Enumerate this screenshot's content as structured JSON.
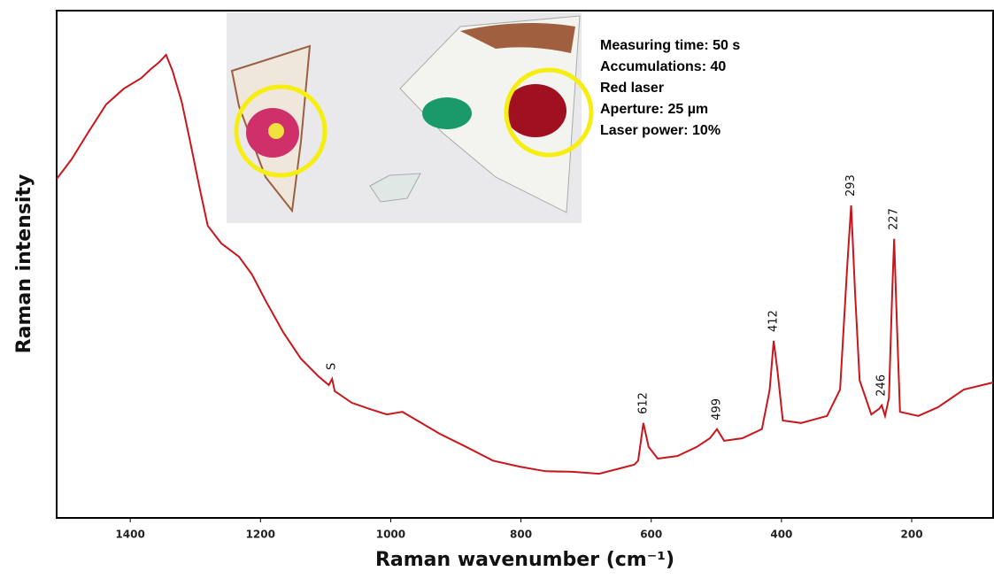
{
  "chart_data": {
    "type": "line",
    "x_label": "Raman wavenumber (cm⁻¹)",
    "y_label": "Raman intensity",
    "xlim": [
      1513,
      75
    ],
    "xticks": [
      1400,
      1200,
      1000,
      800,
      600,
      400,
      200
    ],
    "ylim": [
      0,
      100
    ],
    "series": [
      {
        "color": "#c8161d",
        "x": [
          1513,
          1490,
          1465,
          1437,
          1410,
          1383,
          1369,
          1355,
          1345,
          1335,
          1321,
          1308,
          1294,
          1281,
          1260,
          1233,
          1213,
          1192,
          1165,
          1138,
          1111,
          1095,
          1090,
          1086,
          1060,
          1033,
          1006,
          982,
          966,
          925,
          884,
          843,
          802,
          762,
          721,
          680,
          653,
          626,
          620,
          612,
          604,
          590,
          560,
          530,
          510,
          499,
          488,
          460,
          430,
          418,
          412,
          406,
          398,
          370,
          330,
          310,
          299,
          293,
          287,
          280,
          262,
          250,
          246,
          241,
          235,
          230,
          227,
          223,
          218,
          190,
          160,
          120,
          75
        ],
        "values": [
          66.8,
          70.7,
          75.9,
          81.5,
          84.6,
          86.7,
          88.4,
          89.9,
          91.3,
          88.1,
          82.0,
          74.2,
          65.4,
          57.6,
          54.1,
          51.5,
          48.0,
          42.8,
          36.6,
          31.4,
          27.9,
          26.2,
          27.4,
          25.0,
          22.7,
          21.5,
          20.4,
          20.9,
          19.7,
          16.6,
          14.0,
          11.3,
          10.1,
          9.2,
          9.1,
          8.7,
          9.6,
          10.5,
          11.3,
          18.7,
          14.0,
          11.7,
          12.2,
          14.0,
          15.7,
          17.5,
          15.2,
          15.7,
          17.5,
          25.3,
          34.9,
          28.8,
          19.2,
          18.7,
          20.1,
          25.3,
          49.7,
          61.6,
          44.5,
          27.1,
          20.4,
          21.5,
          22.2,
          20.1,
          23.6,
          44.5,
          55.0,
          39.3,
          20.9,
          20.1,
          21.8,
          25.3,
          26.7
        ]
      }
    ],
    "annotations": [
      {
        "text": "S",
        "x": 1090
      },
      {
        "text": "612",
        "x": 612
      },
      {
        "text": "499",
        "x": 499
      },
      {
        "text": "412",
        "x": 412
      },
      {
        "text": "293",
        "x": 293
      },
      {
        "text": "246",
        "x": 246
      },
      {
        "text": "227",
        "x": 227
      }
    ],
    "notes": [
      "Measuring time: 50 s",
      "Accumulations: 40",
      "Red laser",
      "Aperture: 25 µm",
      "Laser power: 10%"
    ]
  }
}
